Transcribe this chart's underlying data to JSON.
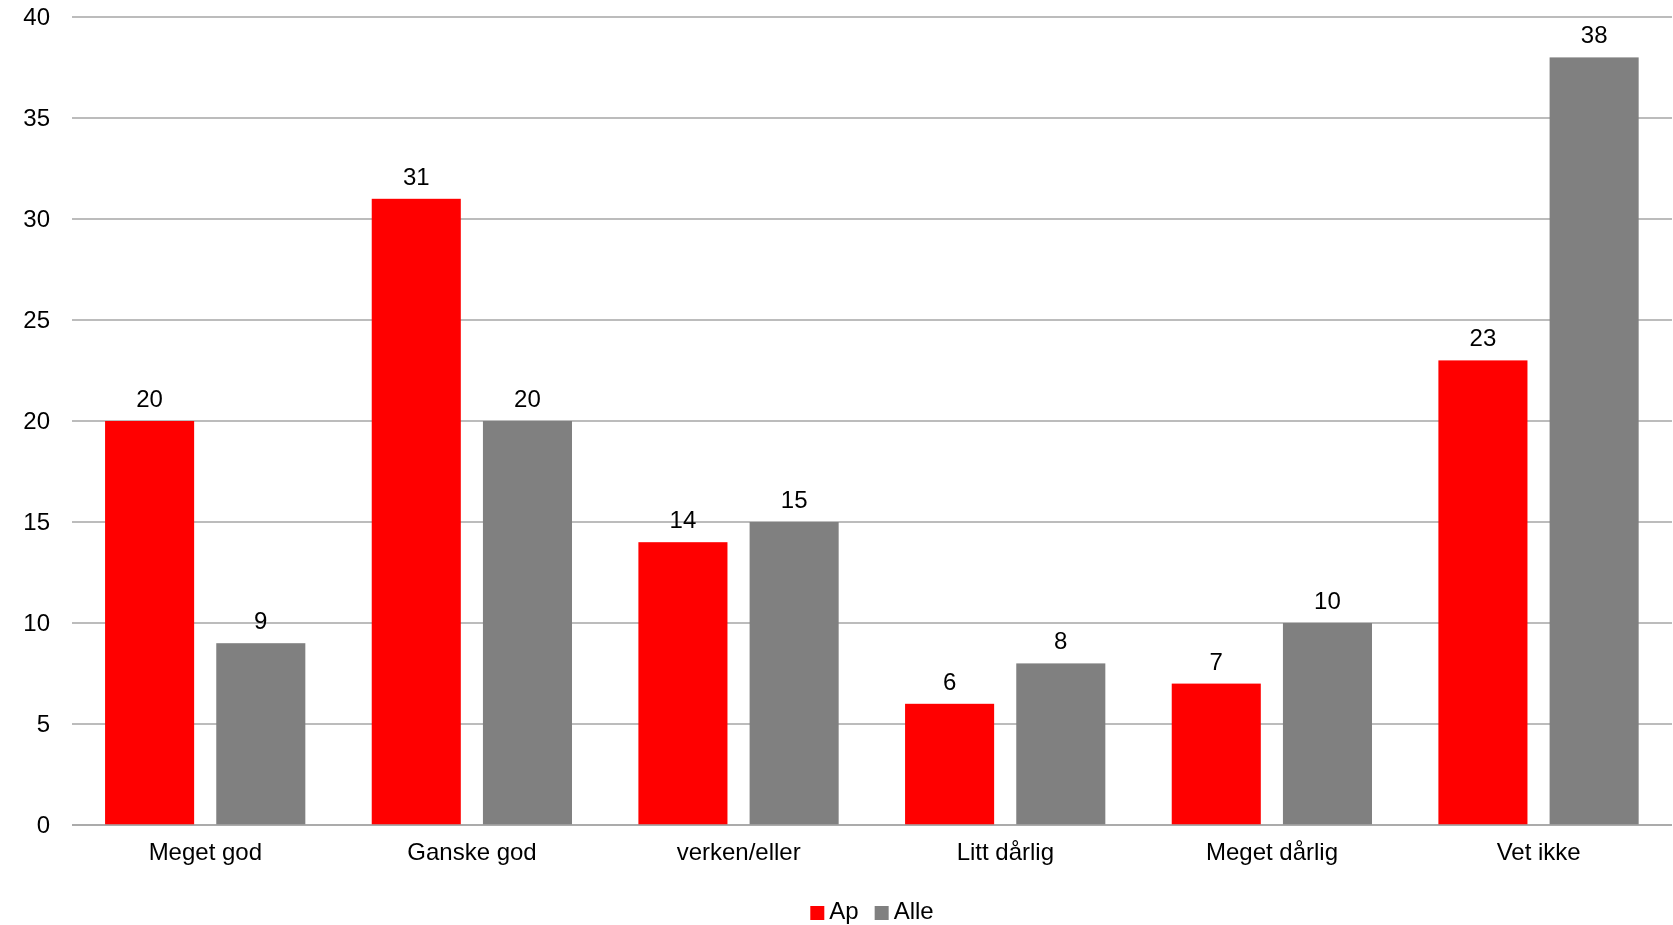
{
  "chart_data": {
    "type": "bar",
    "categories": [
      "Meget god",
      "Ganske god",
      "verken/eller",
      "Litt dårlig",
      "Meget dårlig",
      "Vet ikke"
    ],
    "series": [
      {
        "name": "Ap",
        "color": "#ff0000",
        "values": [
          20,
          31,
          14,
          6,
          7,
          23
        ]
      },
      {
        "name": "Alle",
        "color": "#808080",
        "values": [
          9,
          20,
          15,
          8,
          10,
          38
        ]
      }
    ],
    "ylim": [
      0,
      40
    ],
    "yticks": [
      0,
      5,
      10,
      15,
      20,
      25,
      30,
      35,
      40
    ],
    "grid": "y",
    "legend": "bottom",
    "data_labels": true
  }
}
